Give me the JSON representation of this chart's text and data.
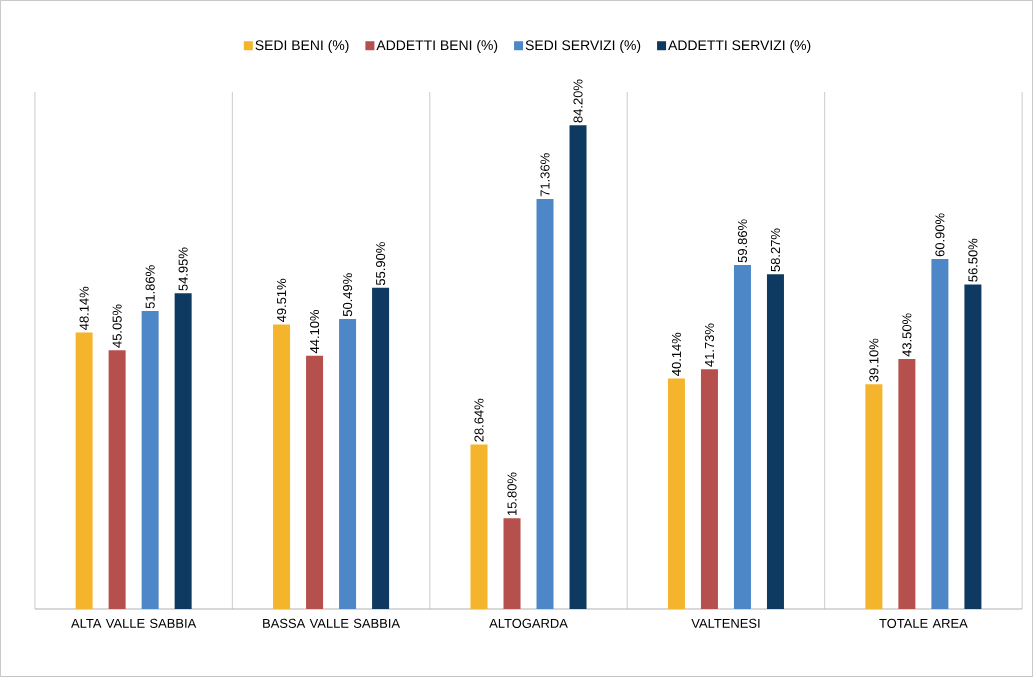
{
  "chart_data": {
    "type": "bar",
    "categories": [
      "ALTA VALLE SABBIA",
      "BASSA VALLE SABBIA",
      "ALTOGARDA",
      "VALTENESI",
      "TOTALE AREA"
    ],
    "series": [
      {
        "name": "SEDI BENI (%)",
        "color": "#f4b52c",
        "values": [
          48.14,
          49.51,
          28.64,
          40.14,
          39.1
        ],
        "value_labels": [
          "48.14%",
          "49.51%",
          "28.64%",
          "40.14%",
          "39.10%"
        ]
      },
      {
        "name": "ADDETTI BENI (%)",
        "color": "#b5504c",
        "values": [
          45.05,
          44.1,
          15.8,
          41.73,
          43.5
        ],
        "value_labels": [
          "45.05%",
          "44.10%",
          "15.80%",
          "41.73%",
          "43.50%"
        ]
      },
      {
        "name": "SEDI SERVIZI (%)",
        "color": "#4d87c7",
        "values": [
          51.86,
          50.49,
          71.36,
          59.86,
          60.9
        ],
        "value_labels": [
          "51.86%",
          "50.49%",
          "71.36%",
          "59.86%",
          "60.90%"
        ]
      },
      {
        "name": "ADDETTI SERVIZI (%)",
        "color": "#0e3a62",
        "values": [
          54.95,
          55.9,
          84.2,
          58.27,
          56.5
        ],
        "value_labels": [
          "54.95%",
          "55.90%",
          "84.20%",
          "58.27%",
          "56.50%"
        ]
      }
    ],
    "ylim": [
      0,
      90
    ],
    "grid": "x",
    "legend": "top",
    "tick_labels": "x"
  }
}
